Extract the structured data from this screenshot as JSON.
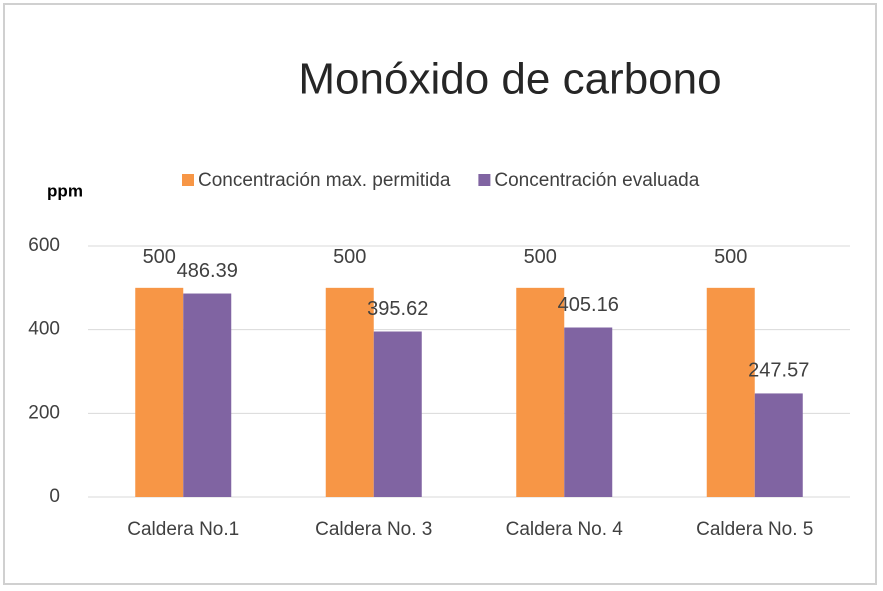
{
  "chart_data": {
    "type": "bar",
    "title": "Monóxido de carbono",
    "y_label": "ppm",
    "categories": [
      "Caldera No.1",
      "Caldera No. 3",
      "Caldera No. 4",
      "Caldera No. 5"
    ],
    "series": [
      {
        "name": "Concentración max. permitida",
        "color": "#f79646",
        "values": [
          500,
          500,
          500,
          500
        ]
      },
      {
        "name": "Concentración evaluada",
        "color": "#8064a2",
        "values": [
          486.39,
          395.62,
          405.16,
          247.57
        ]
      }
    ],
    "ylim": [
      0,
      600
    ],
    "yticks": [
      0,
      200,
      400,
      600
    ],
    "grid": true,
    "legend": "top"
  }
}
